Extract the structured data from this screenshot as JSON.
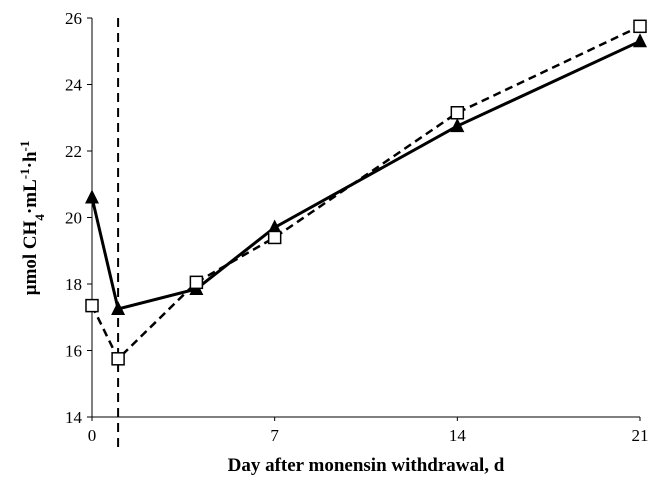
{
  "chart_data": {
    "type": "line",
    "xlabel": "Day after monensin withdrawal, d",
    "ylabel": [
      "µmol CH",
      "4",
      "·mL",
      "-1",
      "·h",
      "-1"
    ],
    "x": [
      0,
      1,
      4,
      7,
      14,
      21
    ],
    "series": [
      {
        "color": "#000000",
        "marker": "triangle",
        "dash": false,
        "values": [
          20.6,
          17.25,
          17.85,
          19.7,
          22.75,
          25.3
        ]
      },
      {
        "color": "#000000",
        "marker": "square",
        "dash": true,
        "values": [
          17.35,
          15.75,
          18.05,
          19.4,
          23.15,
          25.75
        ]
      }
    ],
    "vline_x": 1,
    "xlim": [
      0,
      21
    ],
    "xticks": [
      0,
      7,
      14,
      21
    ],
    "ylim": [
      14,
      26
    ],
    "yticks": [
      14,
      16,
      18,
      20,
      22,
      24,
      26
    ],
    "grid": false
  }
}
